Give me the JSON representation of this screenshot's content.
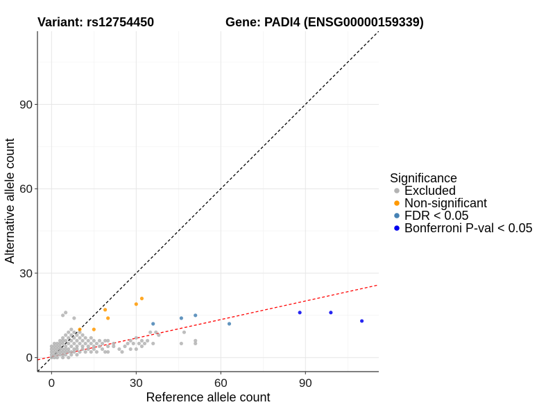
{
  "titles": {
    "variant": "Variant: rs12754450",
    "gene": "Gene: PADI4 (ENSG00000159339)"
  },
  "chart_data": {
    "type": "scatter",
    "xlabel": "Reference allele count",
    "ylabel": "Alternative allele count",
    "xlim": [
      -5,
      116
    ],
    "ylim": [
      -5,
      116
    ],
    "x_ticks": [
      0,
      30,
      60,
      90
    ],
    "y_ticks": [
      0,
      30,
      60,
      90
    ],
    "grid": true,
    "legend": {
      "title": "Significance",
      "placement": "right",
      "entries": [
        {
          "label": "Excluded",
          "color": "#b3b3b3"
        },
        {
          "label": "Non-significant",
          "color": "#ff9900"
        },
        {
          "label": "FDR < 0.05",
          "color": "#4682b4"
        },
        {
          "label": "Bonferroni P-val < 0.05",
          "color": "#0000ee"
        }
      ]
    },
    "reference_lines": [
      {
        "name": "identity",
        "slope": 1,
        "intercept": 0,
        "color": "#000000",
        "style": "dashed"
      },
      {
        "name": "fit",
        "slope": 0.22,
        "intercept": 0.3,
        "color": "#ff0000",
        "style": "dashed"
      }
    ],
    "series": [
      {
        "name": "Excluded",
        "color": "#b3b3b3",
        "points": [
          [
            0,
            0
          ],
          [
            0,
            1
          ],
          [
            0,
            2
          ],
          [
            0,
            3
          ],
          [
            0,
            4
          ],
          [
            1,
            0
          ],
          [
            1,
            1
          ],
          [
            1,
            2
          ],
          [
            1,
            3
          ],
          [
            1,
            4
          ],
          [
            1,
            5
          ],
          [
            2,
            0
          ],
          [
            2,
            1
          ],
          [
            2,
            2
          ],
          [
            2,
            3
          ],
          [
            2,
            4
          ],
          [
            2,
            5
          ],
          [
            3,
            1
          ],
          [
            3,
            2
          ],
          [
            3,
            3
          ],
          [
            3,
            4
          ],
          [
            3,
            5
          ],
          [
            3,
            6
          ],
          [
            4,
            0
          ],
          [
            4,
            1
          ],
          [
            4,
            2
          ],
          [
            4,
            3
          ],
          [
            4,
            5
          ],
          [
            4,
            6
          ],
          [
            4,
            7
          ],
          [
            4,
            15
          ],
          [
            5,
            1
          ],
          [
            5,
            2
          ],
          [
            5,
            3
          ],
          [
            5,
            4
          ],
          [
            5,
            6
          ],
          [
            5,
            8
          ],
          [
            5,
            16
          ],
          [
            6,
            0
          ],
          [
            6,
            2
          ],
          [
            6,
            3
          ],
          [
            6,
            5
          ],
          [
            6,
            7
          ],
          [
            6,
            9
          ],
          [
            7,
            1
          ],
          [
            7,
            2
          ],
          [
            7,
            4
          ],
          [
            7,
            6
          ],
          [
            7,
            8
          ],
          [
            7,
            10
          ],
          [
            8,
            2
          ],
          [
            8,
            3
          ],
          [
            8,
            5
          ],
          [
            8,
            7
          ],
          [
            8,
            9
          ],
          [
            8,
            14
          ],
          [
            9,
            1
          ],
          [
            9,
            3
          ],
          [
            9,
            4
          ],
          [
            9,
            6
          ],
          [
            9,
            8
          ],
          [
            10,
            2
          ],
          [
            10,
            5
          ],
          [
            10,
            7
          ],
          [
            10,
            9
          ],
          [
            11,
            3
          ],
          [
            11,
            4
          ],
          [
            11,
            6
          ],
          [
            11,
            8
          ],
          [
            12,
            2
          ],
          [
            12,
            5
          ],
          [
            12,
            7
          ],
          [
            13,
            3
          ],
          [
            13,
            4
          ],
          [
            13,
            6
          ],
          [
            14,
            2
          ],
          [
            14,
            5
          ],
          [
            14,
            7
          ],
          [
            15,
            3
          ],
          [
            15,
            4
          ],
          [
            15,
            6
          ],
          [
            16,
            2
          ],
          [
            16,
            5
          ],
          [
            17,
            4
          ],
          [
            17,
            6
          ],
          [
            18,
            3
          ],
          [
            18,
            5
          ],
          [
            19,
            2
          ],
          [
            19,
            6
          ],
          [
            20,
            2
          ],
          [
            20,
            4
          ],
          [
            20,
            6
          ],
          [
            22,
            4
          ],
          [
            22,
            5
          ],
          [
            24,
            3
          ],
          [
            25,
            2
          ],
          [
            26,
            4
          ],
          [
            27,
            5
          ],
          [
            28,
            3
          ],
          [
            28,
            6
          ],
          [
            29,
            5
          ],
          [
            30,
            3
          ],
          [
            30,
            7
          ],
          [
            31,
            5
          ],
          [
            32,
            4
          ],
          [
            32,
            6
          ],
          [
            33,
            5
          ],
          [
            34,
            6
          ],
          [
            35,
            9
          ],
          [
            36,
            5
          ],
          [
            37,
            9
          ],
          [
            38,
            8
          ],
          [
            46,
            5
          ],
          [
            47,
            9
          ],
          [
            51,
            5
          ],
          [
            51,
            6
          ]
        ]
      },
      {
        "name": "Non-significant",
        "color": "#ff9900",
        "points": [
          [
            10,
            10
          ],
          [
            15,
            10
          ],
          [
            19,
            17
          ],
          [
            20,
            14
          ],
          [
            30,
            19
          ],
          [
            32,
            21
          ]
        ]
      },
      {
        "name": "FDR < 0.05",
        "color": "#4682b4",
        "points": [
          [
            36,
            12
          ],
          [
            46,
            14
          ],
          [
            51,
            15
          ],
          [
            63,
            12
          ]
        ]
      },
      {
        "name": "Bonferroni P-val < 0.05",
        "color": "#0000ee",
        "points": [
          [
            88,
            16
          ],
          [
            99,
            16
          ],
          [
            110,
            13
          ]
        ]
      }
    ]
  }
}
